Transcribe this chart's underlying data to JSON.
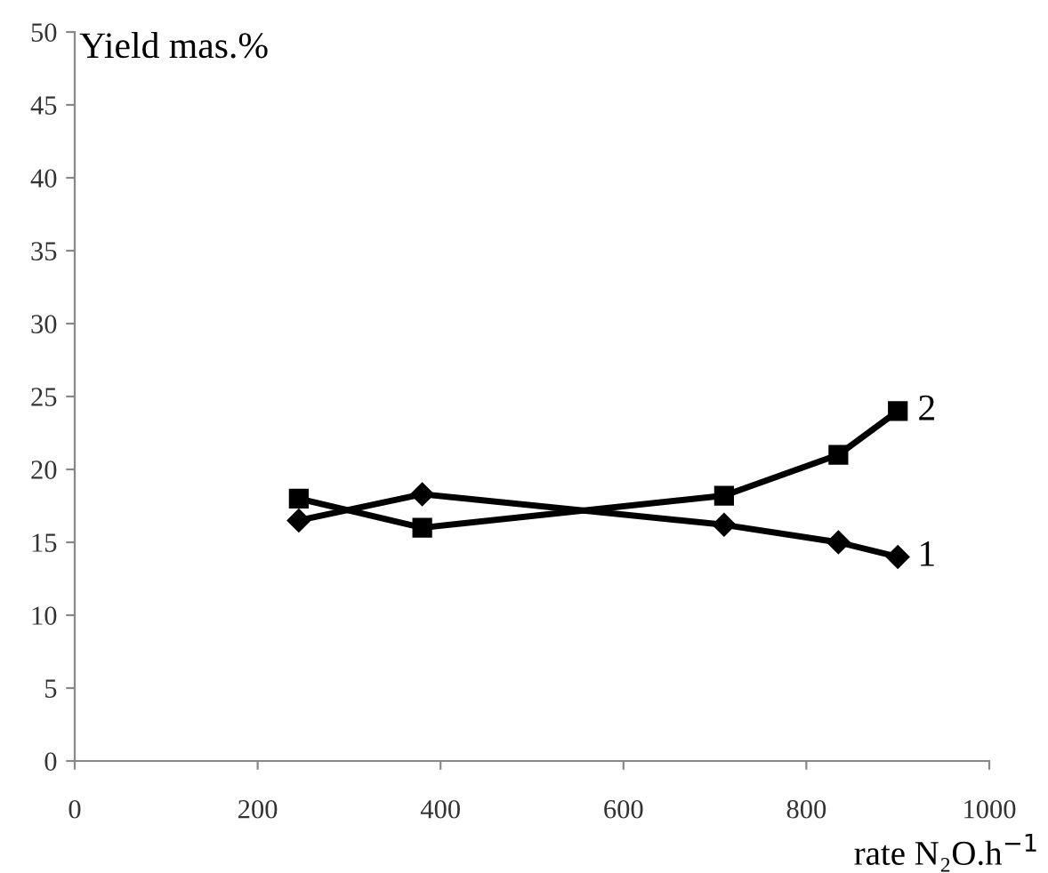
{
  "chart_data": {
    "type": "line",
    "ylabel": "Yield mas.%",
    "xlabel": "rate N₂O.h$^{−1}$",
    "xlim": [
      0,
      1000
    ],
    "xticks": [
      0,
      200,
      400,
      600,
      800,
      1000
    ],
    "ylim": [
      0,
      50
    ],
    "yticks": [
      0,
      5,
      10,
      15,
      20,
      25,
      30,
      35,
      40,
      45,
      50
    ],
    "grid": false,
    "legend": false,
    "series": [
      {
        "name": "1",
        "color": "#000000",
        "marker": "diamond",
        "x": [
          245,
          380,
          710,
          835,
          900
        ],
        "values": [
          16.5,
          18.3,
          16.2,
          15,
          14
        ]
      },
      {
        "name": "2",
        "color": "#000000",
        "marker": "square",
        "x": [
          245,
          380,
          710,
          835,
          900
        ],
        "values": [
          18,
          16,
          18.2,
          21,
          24
        ]
      }
    ]
  }
}
